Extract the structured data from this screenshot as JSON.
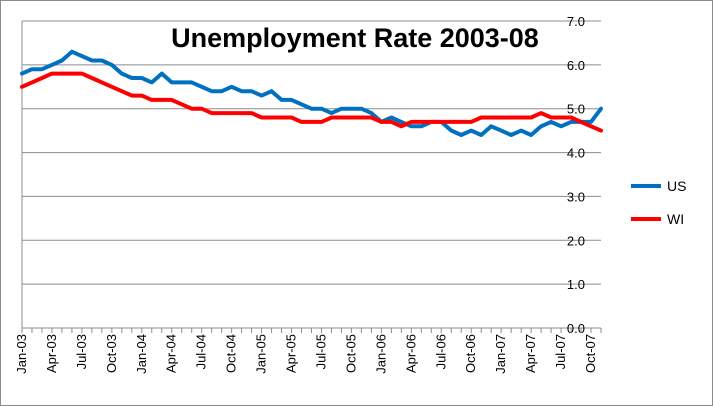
{
  "chart_data": {
    "type": "line",
    "title": "Unemployment Rate 2003-08",
    "xlabel": "",
    "ylabel": "",
    "ylim": [
      0,
      7
    ],
    "y_ticks": [
      "0.0",
      "1.0",
      "2.0",
      "3.0",
      "4.0",
      "5.0",
      "6.0",
      "7.0"
    ],
    "x_tick_labels": [
      "Jan-03",
      "Apr-03",
      "Jul-03",
      "Oct-03",
      "Jan-04",
      "Apr-04",
      "Jul-04",
      "Oct-04",
      "Jan-05",
      "Apr-05",
      "Jul-05",
      "Oct-05",
      "Jan-06",
      "Apr-06",
      "Jul-06",
      "Oct-06",
      "Jan-07",
      "Apr-07",
      "Jul-07",
      "Oct-07"
    ],
    "grid": "horizontal",
    "legend_position": "right",
    "series": [
      {
        "name": "US",
        "color": "#0070c0",
        "values": [
          5.8,
          5.9,
          5.9,
          6.0,
          6.1,
          6.3,
          6.2,
          6.1,
          6.1,
          6.0,
          5.8,
          5.7,
          5.7,
          5.6,
          5.8,
          5.6,
          5.6,
          5.6,
          5.5,
          5.4,
          5.4,
          5.5,
          5.4,
          5.4,
          5.3,
          5.4,
          5.2,
          5.2,
          5.1,
          5.0,
          5.0,
          4.9,
          5.0,
          5.0,
          5.0,
          4.9,
          4.7,
          4.8,
          4.7,
          4.6,
          4.6,
          4.7,
          4.7,
          4.5,
          4.4,
          4.5,
          4.4,
          4.6,
          4.5,
          4.4,
          4.5,
          4.4,
          4.6,
          4.7,
          4.6,
          4.7,
          4.7,
          4.7,
          5.0
        ]
      },
      {
        "name": "WI",
        "color": "#ff0000",
        "values": [
          5.5,
          5.6,
          5.7,
          5.8,
          5.8,
          5.8,
          5.8,
          5.7,
          5.6,
          5.5,
          5.4,
          5.3,
          5.3,
          5.2,
          5.2,
          5.2,
          5.1,
          5.0,
          5.0,
          4.9,
          4.9,
          4.9,
          4.9,
          4.9,
          4.8,
          4.8,
          4.8,
          4.8,
          4.7,
          4.7,
          4.7,
          4.8,
          4.8,
          4.8,
          4.8,
          4.8,
          4.7,
          4.7,
          4.6,
          4.7,
          4.7,
          4.7,
          4.7,
          4.7,
          4.7,
          4.7,
          4.8,
          4.8,
          4.8,
          4.8,
          4.8,
          4.8,
          4.9,
          4.8,
          4.8,
          4.8,
          4.7,
          4.6,
          4.5
        ]
      }
    ]
  }
}
